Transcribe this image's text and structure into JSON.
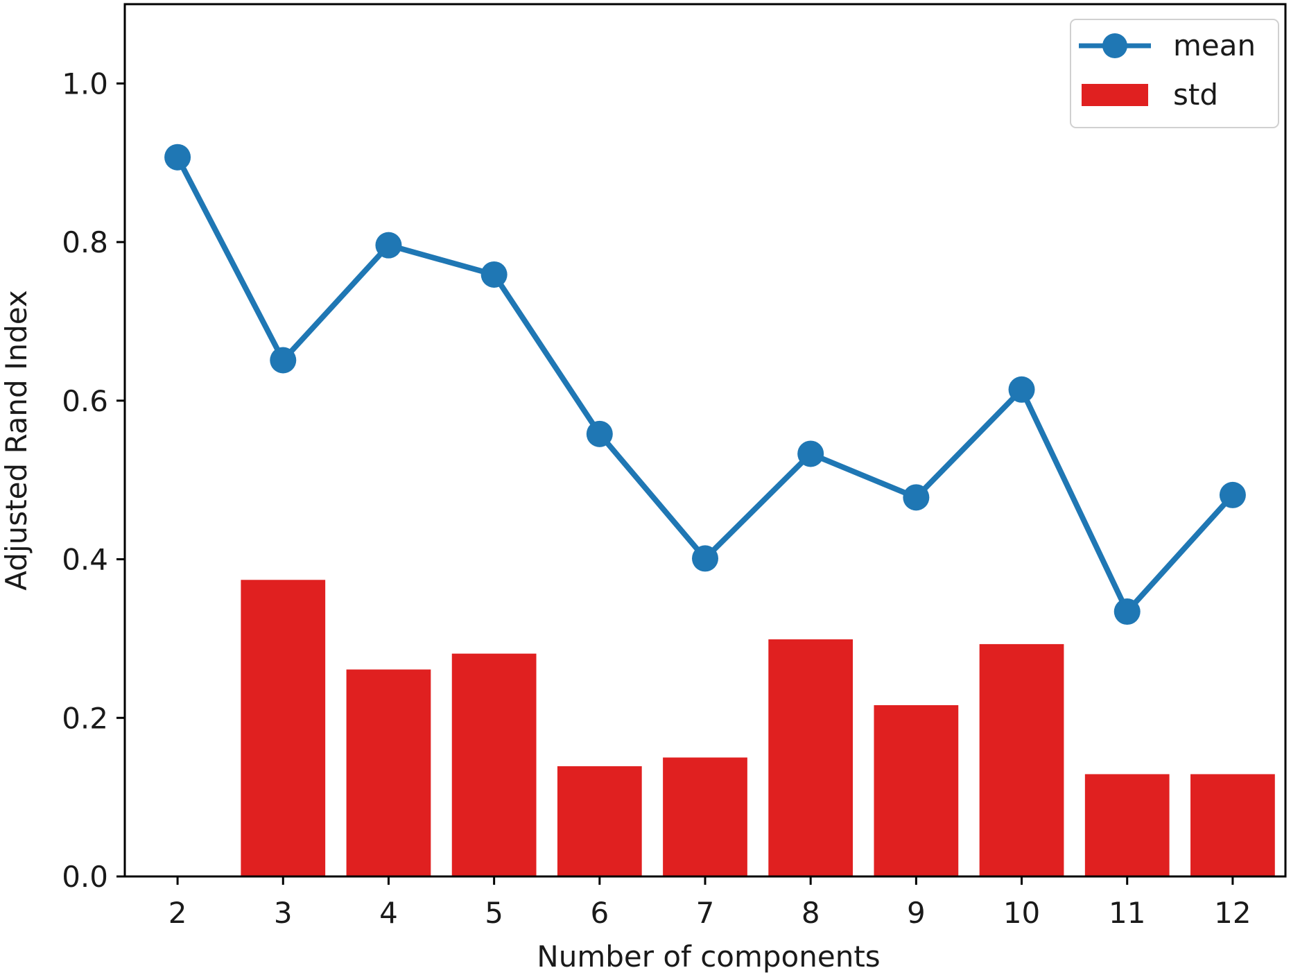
{
  "chart_data": {
    "type": "bar",
    "xlabel": "Number of components",
    "ylabel": "Adjusted Rand Index",
    "categories": [
      "2",
      "3",
      "4",
      "5",
      "6",
      "7",
      "8",
      "9",
      "10",
      "11",
      "12"
    ],
    "xlim": [
      1.5,
      12.5
    ],
    "ylim": [
      0.0,
      1.1
    ],
    "yticks": [
      "0.0",
      "0.2",
      "0.4",
      "0.6",
      "0.8",
      "1.0"
    ],
    "grid": false,
    "legend_position": "top-right",
    "series": [
      {
        "name": "mean",
        "kind": "line",
        "marker": "circle",
        "color": "#1f77b4",
        "values": [
          0.907,
          0.651,
          0.796,
          0.759,
          0.558,
          0.401,
          0.533,
          0.478,
          0.614,
          0.334,
          0.481
        ]
      },
      {
        "name": "std",
        "kind": "bar",
        "color": "#e02020",
        "values": [
          0.0,
          0.374,
          0.261,
          0.281,
          0.139,
          0.15,
          0.299,
          0.216,
          0.293,
          0.129,
          0.129
        ]
      }
    ]
  }
}
